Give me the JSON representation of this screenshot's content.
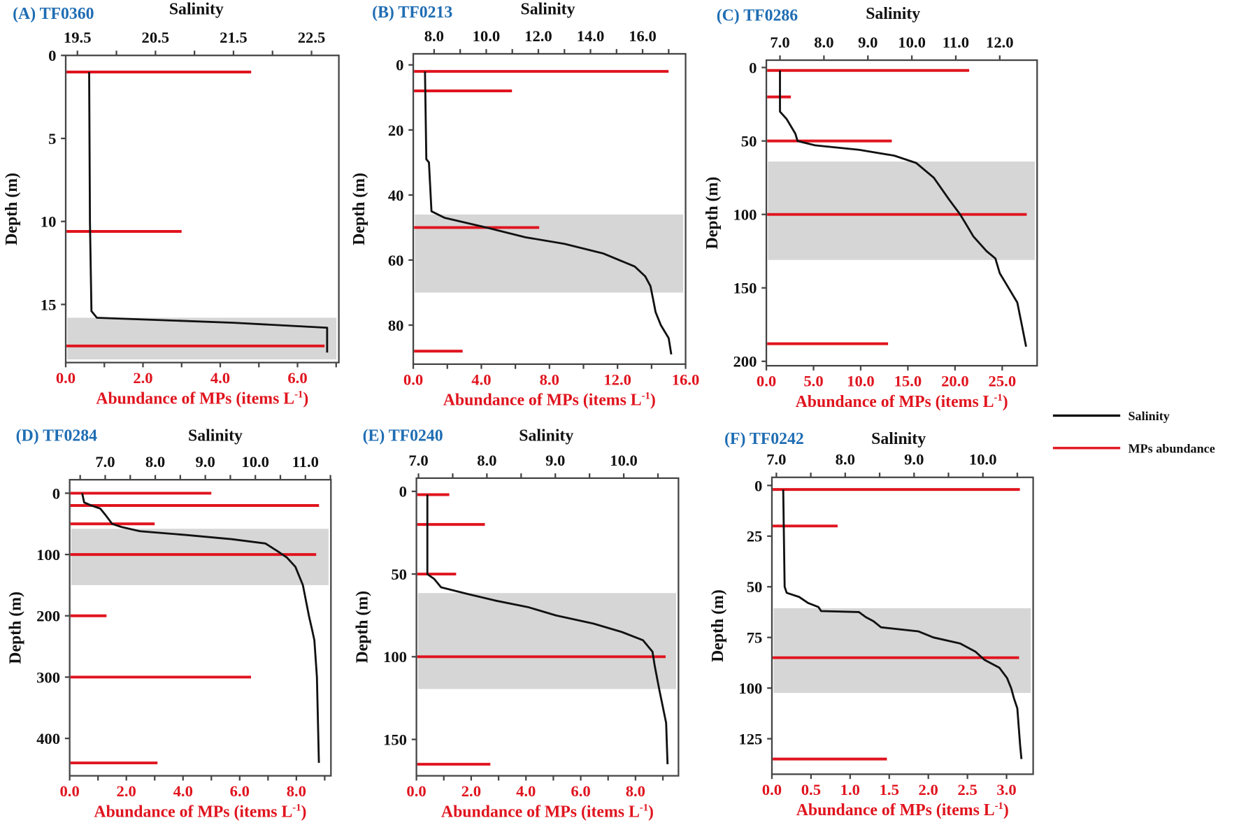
{
  "legend": {
    "salinity": "Salinity",
    "mps": "MPs abundance"
  },
  "colors": {
    "salinity": "#111111",
    "mps": "#e0141e",
    "shade": "#d6d6d6",
    "title": "#1f6db3"
  },
  "chart_data": [
    {
      "type": "line",
      "title": "(A) TF0360",
      "top_label": "Salinity",
      "ylabel": "Depth (m)",
      "xlabel": "Abundance of MPs (items L",
      "xlabel_sup": "-1",
      "xlabel_end": ")",
      "ylim": [
        0,
        18.5
      ],
      "depth_ticks": [
        "0",
        "5",
        "10",
        "15"
      ],
      "abundance_lim": [
        0,
        7.07
      ],
      "abundance_ticks": [
        "0.0",
        "2.0",
        "4.0",
        "6.0"
      ],
      "abundance_minor": 1,
      "salinity_lim": [
        19.35,
        22.85
      ],
      "salinity_ticks": [
        "19.5",
        "20.5",
        "21.5",
        "22.5"
      ],
      "salinity_minor": 0.5,
      "shaded_layer": [
        15.8,
        18.5
      ],
      "mps": [
        {
          "depth": 1,
          "abundance": 4.8
        },
        {
          "depth": 10.6,
          "abundance": 3.0
        },
        {
          "depth": 17.5,
          "abundance": 6.7
        }
      ],
      "salinity": [
        [
          1,
          19.65
        ],
        [
          10,
          19.66
        ],
        [
          15.4,
          19.68
        ],
        [
          15.8,
          19.75
        ],
        [
          16.1,
          21.5
        ],
        [
          16.4,
          22.7
        ],
        [
          17.9,
          22.7
        ]
      ]
    },
    {
      "type": "line",
      "title": "(B) TF0213",
      "top_label": "Salinity",
      "ylabel": "Depth (m)",
      "xlabel": "Abundance of MPs (items L",
      "xlabel_sup": "-1",
      "xlabel_end": ")",
      "ylim": [
        -3.4,
        92
      ],
      "depth_ticks": [
        "0",
        "20",
        "40",
        "60",
        "80"
      ],
      "abundance_lim": [
        0,
        16
      ],
      "abundance_ticks": [
        "0.0",
        "4.0",
        "8.0",
        "12.0",
        "16.0"
      ],
      "abundance_minor": 2,
      "salinity_lim": [
        7.2,
        17.65
      ],
      "salinity_ticks": [
        "8.0",
        "10.0",
        "12.0",
        "14.0",
        "16.0"
      ],
      "salinity_minor": 1,
      "shaded_layer": [
        46,
        70
      ],
      "mps": [
        {
          "depth": 2,
          "abundance": 15.0
        },
        {
          "depth": 8,
          "abundance": 5.8
        },
        {
          "depth": 50,
          "abundance": 7.4
        },
        {
          "depth": 88,
          "abundance": 2.9
        }
      ],
      "salinity": [
        [
          2,
          7.65
        ],
        [
          29,
          7.7
        ],
        [
          30,
          7.8
        ],
        [
          45,
          7.9
        ],
        [
          47,
          8.4
        ],
        [
          50,
          10
        ],
        [
          53,
          11.5
        ],
        [
          55,
          13
        ],
        [
          58,
          14.5
        ],
        [
          62,
          15.7
        ],
        [
          65,
          16.1
        ],
        [
          68,
          16.3
        ],
        [
          72,
          16.4
        ],
        [
          76,
          16.5
        ],
        [
          80,
          16.7
        ],
        [
          84,
          17.0
        ],
        [
          89,
          17.1
        ]
      ]
    },
    {
      "type": "line",
      "title": "(C) TF0286",
      "top_label": "Salinity",
      "ylabel": "Depth (m)",
      "xlabel": "Abundance of MPs (items L",
      "xlabel_sup": "-1",
      "xlabel_end": ")",
      "ylim": [
        -5,
        203
      ],
      "depth_ticks": [
        "0",
        "50",
        "100",
        "150",
        "200"
      ],
      "abundance_lim": [
        0,
        28.7
      ],
      "abundance_ticks": [
        "0.0",
        "5.0",
        "10.0",
        "15.0",
        "20.0",
        "25.0"
      ],
      "abundance_minor": 5,
      "salinity_lim": [
        6.69,
        12.85
      ],
      "salinity_ticks": [
        "7.0",
        "8.0",
        "9.0",
        "10.0",
        "11.0",
        "12.0"
      ],
      "salinity_minor": 1,
      "shaded_layer": [
        64,
        131
      ],
      "mps": [
        {
          "depth": 2,
          "abundance": 21.5
        },
        {
          "depth": 20,
          "abundance": 2.6
        },
        {
          "depth": 50,
          "abundance": 13.3
        },
        {
          "depth": 100,
          "abundance": 27.6
        },
        {
          "depth": 188,
          "abundance": 12.9
        }
      ],
      "salinity": [
        [
          2,
          7.0
        ],
        [
          30,
          7.0
        ],
        [
          35,
          7.15
        ],
        [
          45,
          7.35
        ],
        [
          50,
          7.4
        ],
        [
          53,
          7.8
        ],
        [
          56,
          8.8
        ],
        [
          60,
          9.6
        ],
        [
          65,
          10.1
        ],
        [
          75,
          10.5
        ],
        [
          90,
          10.85
        ],
        [
          100,
          11.1
        ],
        [
          105,
          11.2
        ],
        [
          115,
          11.4
        ],
        [
          125,
          11.7
        ],
        [
          130,
          11.9
        ],
        [
          140,
          12.0
        ],
        [
          150,
          12.2
        ],
        [
          160,
          12.4
        ],
        [
          175,
          12.5
        ],
        [
          190,
          12.6
        ]
      ]
    },
    {
      "type": "line",
      "title": "(D) TF0284",
      "top_label": "Salinity",
      "ylabel": "Depth (m)",
      "xlabel": "Abundance of MPs (items L",
      "xlabel_sup": "-1",
      "xlabel_end": ")",
      "ylim": [
        -22,
        461
      ],
      "depth_ticks": [
        "0",
        "100",
        "200",
        "300",
        "400"
      ],
      "abundance_lim": [
        0,
        9.22
      ],
      "abundance_ticks": [
        "0.0",
        "2.0",
        "4.0",
        "6.0",
        "8.0"
      ],
      "abundance_minor": 1,
      "salinity_lim": [
        6.29,
        11.51
      ],
      "salinity_ticks": [
        "7.0",
        "8.0",
        "9.0",
        "10.0",
        "11.0"
      ],
      "salinity_minor": 0.5,
      "shaded_layer": [
        58,
        150
      ],
      "mps": [
        {
          "depth": 0,
          "abundance": 5.0
        },
        {
          "depth": 20,
          "abundance": 8.8
        },
        {
          "depth": 50,
          "abundance": 3.0
        },
        {
          "depth": 100,
          "abundance": 8.7
        },
        {
          "depth": 200,
          "abundance": 1.3
        },
        {
          "depth": 300,
          "abundance": 6.4
        },
        {
          "depth": 440,
          "abundance": 3.1
        }
      ],
      "salinity": [
        [
          0,
          6.54
        ],
        [
          15,
          6.58
        ],
        [
          20,
          6.72
        ],
        [
          25,
          6.9
        ],
        [
          35,
          7.0
        ],
        [
          50,
          7.14
        ],
        [
          55,
          7.32
        ],
        [
          62,
          7.69
        ],
        [
          68,
          8.6
        ],
        [
          75,
          9.53
        ],
        [
          82,
          10.2
        ],
        [
          95,
          10.45
        ],
        [
          105,
          10.63
        ],
        [
          120,
          10.8
        ],
        [
          150,
          10.95
        ],
        [
          200,
          11.07
        ],
        [
          225,
          11.14
        ],
        [
          240,
          11.18
        ],
        [
          300,
          11.23
        ],
        [
          440,
          11.27
        ]
      ]
    },
    {
      "type": "line",
      "title": "(E) TF0240",
      "top_label": "Salinity",
      "ylabel": "Depth (m)",
      "xlabel": "Abundance of MPs (items L",
      "xlabel_sup": "-1",
      "xlabel_end": ")",
      "ylim": [
        -8,
        172
      ],
      "depth_ticks": [
        "0",
        "50",
        "100",
        "150"
      ],
      "abundance_lim": [
        0,
        9.57
      ],
      "abundance_ticks": [
        "0.0",
        "2.0",
        "4.0",
        "6.0",
        "8.0"
      ],
      "abundance_minor": 1,
      "salinity_lim": [
        6.97,
        10.8
      ],
      "salinity_ticks": [
        "7.0",
        "8.0",
        "9.0",
        "10.0"
      ],
      "salinity_minor": 0.5,
      "shaded_layer": [
        61.5,
        119.5
      ],
      "mps": [
        {
          "depth": 2,
          "abundance": 1.2
        },
        {
          "depth": 20,
          "abundance": 2.5
        },
        {
          "depth": 50,
          "abundance": 1.45
        },
        {
          "depth": 100,
          "abundance": 9.1
        },
        {
          "depth": 165,
          "abundance": 2.7
        }
      ],
      "salinity": [
        [
          2,
          7.13
        ],
        [
          50,
          7.13
        ],
        [
          53,
          7.23
        ],
        [
          58,
          7.33
        ],
        [
          62,
          7.71
        ],
        [
          66,
          8.12
        ],
        [
          70,
          8.6
        ],
        [
          75,
          9.01
        ],
        [
          80,
          9.56
        ],
        [
          85,
          9.97
        ],
        [
          90,
          10.28
        ],
        [
          97,
          10.42
        ],
        [
          105,
          10.45
        ],
        [
          120,
          10.52
        ],
        [
          140,
          10.62
        ],
        [
          165,
          10.64
        ]
      ]
    },
    {
      "type": "line",
      "title": "(F) TF0242",
      "top_label": "Salinity",
      "ylabel": "Depth (m)",
      "xlabel": "Abundance of MPs (items L",
      "xlabel_sup": "-1",
      "xlabel_end": ")",
      "ylim": [
        -4,
        142.5
      ],
      "depth_ticks": [
        "0",
        "25",
        "50",
        "75",
        "100",
        "125"
      ],
      "abundance_lim": [
        0,
        3.34
      ],
      "abundance_ticks": [
        "0.0",
        "0.5",
        "1.0",
        "1.5",
        "2.0",
        "2.5",
        "3.0"
      ],
      "abundance_minor": 0.5,
      "salinity_lim": [
        6.935,
        10.73
      ],
      "salinity_ticks": [
        "7.0",
        "8.0",
        "9.0",
        "10.0"
      ],
      "salinity_minor": 0.5,
      "shaded_layer": [
        60.6,
        102.4
      ],
      "mps": [
        {
          "depth": 2,
          "abundance": 3.17
        },
        {
          "depth": 20,
          "abundance": 0.84
        },
        {
          "depth": 85,
          "abundance": 3.16
        },
        {
          "depth": 135,
          "abundance": 1.47
        }
      ],
      "salinity": [
        [
          2,
          7.1
        ],
        [
          50,
          7.12
        ],
        [
          53,
          7.15
        ],
        [
          55,
          7.33
        ],
        [
          58,
          7.46
        ],
        [
          60,
          7.61
        ],
        [
          62,
          7.65
        ],
        [
          62.5,
          8.2
        ],
        [
          65,
          8.3
        ],
        [
          67,
          8.41
        ],
        [
          70,
          8.52
        ],
        [
          72,
          9.06
        ],
        [
          75,
          9.28
        ],
        [
          78,
          9.67
        ],
        [
          82,
          9.89
        ],
        [
          86,
          10.02
        ],
        [
          90,
          10.24
        ],
        [
          95,
          10.35
        ],
        [
          100,
          10.41
        ],
        [
          105,
          10.45
        ],
        [
          110,
          10.5
        ],
        [
          128,
          10.54
        ],
        [
          135,
          10.56
        ]
      ]
    }
  ]
}
